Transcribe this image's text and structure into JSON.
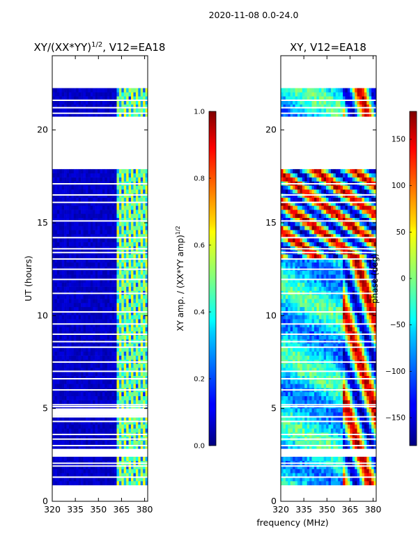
{
  "figure": {
    "suptitle": "2020-11-08 0.0-24.0",
    "xlabel": "frequency (MHz)"
  },
  "chart_data": [
    {
      "type": "heatmap",
      "title_main": "XY/(XX*YY)",
      "title_sup": "1/2",
      "title_tail": ", V12=EA18",
      "xlabel": "",
      "ylabel": "UT (hours)",
      "xlim": [
        320,
        382
      ],
      "ylim": [
        0,
        24
      ],
      "xticks": [
        320,
        335,
        350,
        365,
        380
      ],
      "yticks": [
        0,
        5,
        10,
        15,
        20
      ],
      "colorbar": {
        "label_main": "XY amp. / (XX*YY amp)",
        "label_sup": "1/2",
        "range": [
          0.0,
          1.0
        ],
        "ticks": [
          "0.0",
          "0.2",
          "0.4",
          "0.6",
          "0.8",
          "1.0"
        ],
        "colormap": "jet"
      },
      "data_gaps_hours": [
        [
          0,
          0.8
        ],
        [
          2.5,
          2.8
        ],
        [
          5.0,
          4.6
        ],
        [
          17.8,
          20.8
        ],
        [
          22.2,
          24.0
        ]
      ],
      "description": "normalized cross-correlation amplitude; low (~0.05) below 362 MHz, bursts of 0.3-0.6 between 362 and 380 MHz"
    },
    {
      "type": "heatmap",
      "title": "XY, V12=EA18",
      "xlabel": "",
      "ylabel": "",
      "xlim": [
        320,
        382
      ],
      "ylim": [
        0,
        24
      ],
      "xticks": [
        320,
        335,
        350,
        365,
        380
      ],
      "yticks": [
        0,
        5,
        10,
        15,
        20
      ],
      "colorbar": {
        "label": "phase (deg)",
        "range": [
          -180,
          180
        ],
        "ticks": [
          "−150",
          "−100",
          "−50",
          "0",
          "50",
          "100",
          "150"
        ],
        "colormap": "jet"
      },
      "data_gaps_hours": [
        [
          0,
          0.8
        ],
        [
          2.5,
          2.8
        ],
        [
          17.8,
          20.8
        ],
        [
          22.2,
          24.0
        ]
      ],
      "description": "cross-correlation phase in degrees, spanning full range with structured wraps above 360 MHz"
    }
  ],
  "colors": {
    "jet_dark_blue": "#00007f",
    "jet_blue": "#0000ff",
    "jet_cyan": "#00ffff",
    "jet_yellow": "#ffff00",
    "jet_red": "#ff0000",
    "jet_dark_red": "#7f0000"
  }
}
